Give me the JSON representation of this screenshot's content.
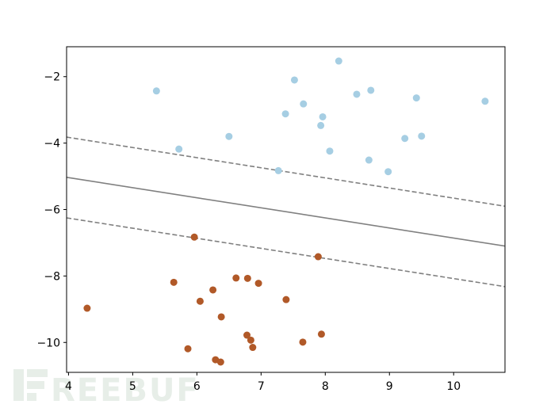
{
  "chart_data": {
    "type": "scatter",
    "title": "",
    "xlabel": "",
    "ylabel": "",
    "xlim": [
      3.97,
      10.8
    ],
    "ylim": [
      -10.9,
      -1.1
    ],
    "xticks": [
      4,
      5,
      6,
      7,
      8,
      9,
      10
    ],
    "yticks": [
      -2,
      -4,
      -6,
      -8,
      -10
    ],
    "x_tick_labels": [
      "4",
      "5",
      "6",
      "7",
      "8",
      "9",
      "10"
    ],
    "y_tick_labels": [
      "−2",
      "−4",
      "−6",
      "−8",
      "−10"
    ],
    "grid": false,
    "series": [
      {
        "color": "#a6cee3",
        "points": [
          [
            5.37,
            -2.43
          ],
          [
            5.72,
            -4.18
          ],
          [
            6.5,
            -3.8
          ],
          [
            7.27,
            -4.83
          ],
          [
            7.38,
            -3.12
          ],
          [
            7.52,
            -2.1
          ],
          [
            7.66,
            -2.82
          ],
          [
            7.93,
            -3.47
          ],
          [
            7.96,
            -3.21
          ],
          [
            8.07,
            -4.24
          ],
          [
            8.21,
            -1.53
          ],
          [
            8.49,
            -2.53
          ],
          [
            8.68,
            -4.51
          ],
          [
            8.71,
            -2.41
          ],
          [
            8.98,
            -4.86
          ],
          [
            9.24,
            -3.86
          ],
          [
            9.42,
            -2.64
          ],
          [
            9.5,
            -3.79
          ],
          [
            10.49,
            -2.74
          ]
        ]
      },
      {
        "color": "#b15928",
        "points": [
          [
            4.29,
            -8.97
          ],
          [
            5.64,
            -8.19
          ],
          [
            5.86,
            -10.19
          ],
          [
            5.96,
            -6.83
          ],
          [
            6.05,
            -8.76
          ],
          [
            6.25,
            -8.42
          ],
          [
            6.29,
            -10.52
          ],
          [
            6.37,
            -10.59
          ],
          [
            6.38,
            -9.23
          ],
          [
            6.61,
            -8.06
          ],
          [
            6.79,
            -8.07
          ],
          [
            6.78,
            -9.78
          ],
          [
            6.84,
            -9.93
          ],
          [
            6.87,
            -10.15
          ],
          [
            6.96,
            -8.22
          ],
          [
            7.39,
            -8.71
          ],
          [
            7.65,
            -9.99
          ],
          [
            7.89,
            -7.42
          ],
          [
            7.94,
            -9.75
          ]
        ]
      }
    ],
    "decision_lines": [
      {
        "style": "solid",
        "color": "#808080",
        "endpoints": [
          [
            3.97,
            -5.03
          ],
          [
            10.8,
            -7.1
          ]
        ]
      },
      {
        "style": "dashed",
        "color": "#808080",
        "endpoints": [
          [
            3.97,
            -3.82
          ],
          [
            10.8,
            -5.9
          ]
        ]
      },
      {
        "style": "dashed",
        "color": "#808080",
        "endpoints": [
          [
            3.97,
            -6.25
          ],
          [
            10.8,
            -8.32
          ]
        ]
      }
    ]
  },
  "watermark": {
    "text": "REEBUF",
    "color": "#e7eee8"
  }
}
